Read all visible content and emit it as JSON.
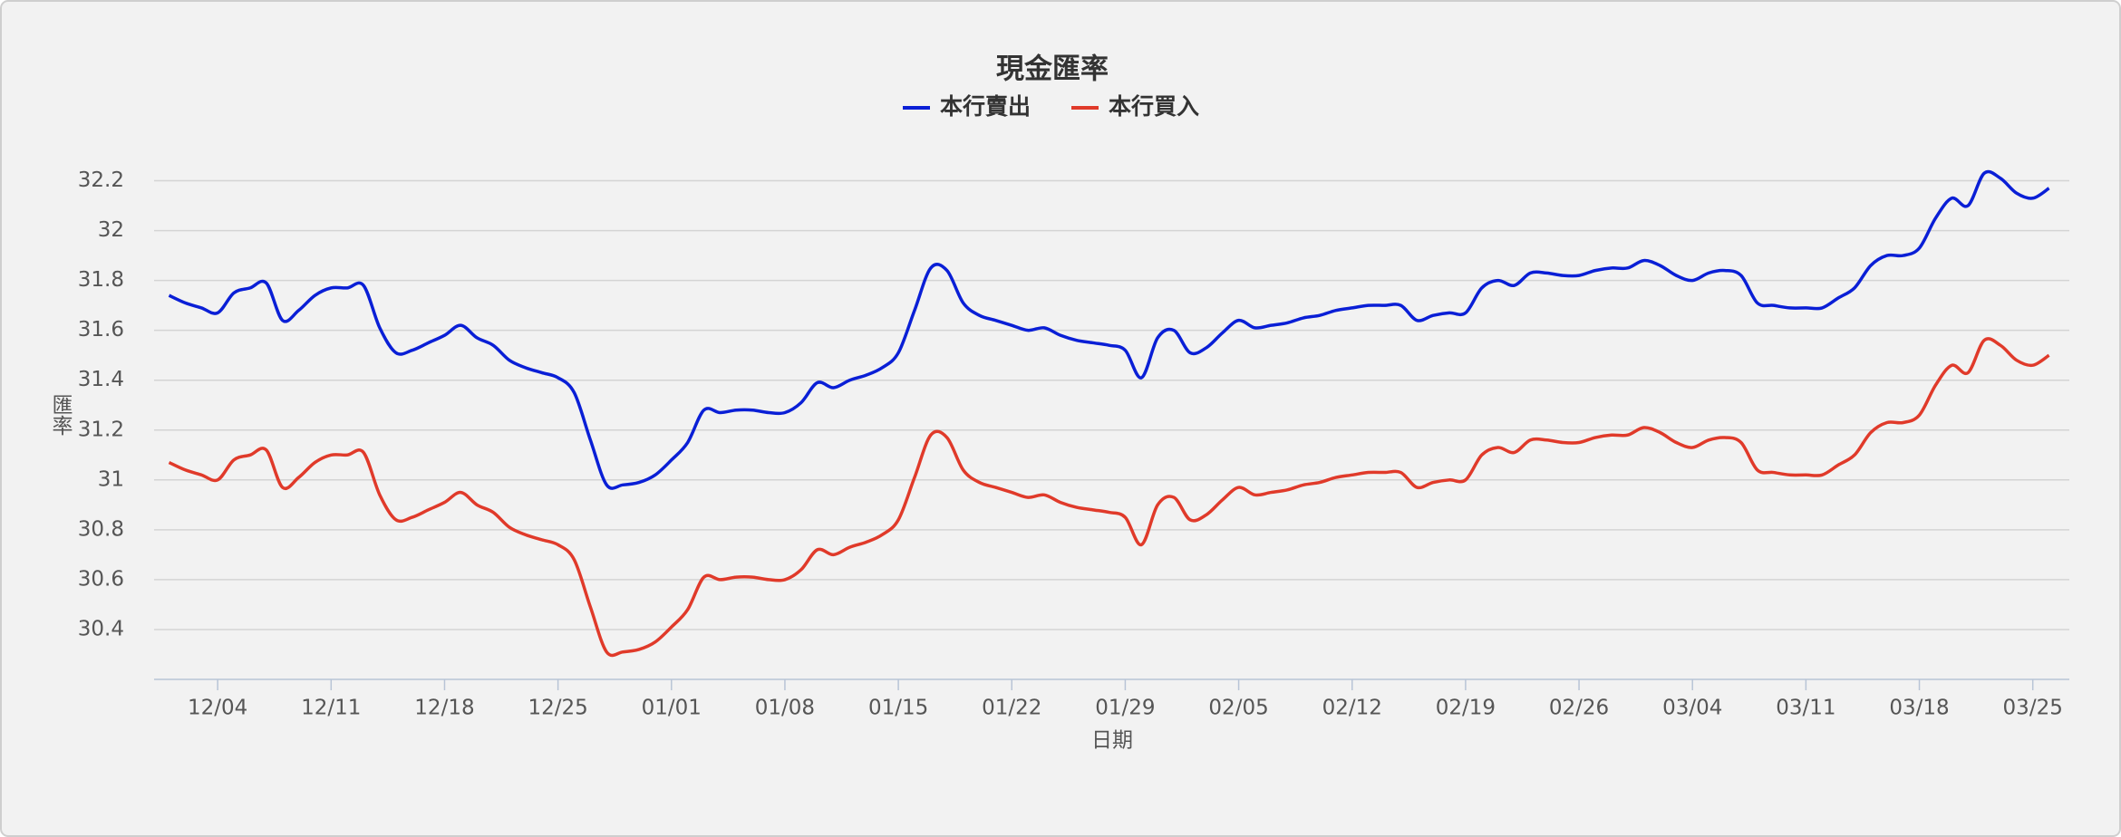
{
  "chart_data": {
    "type": "line",
    "title": "現金匯率",
    "x_label": "日期",
    "y_label": "匯率",
    "categories": [
      null,
      null,
      null,
      "12/04",
      null,
      null,
      null,
      null,
      null,
      null,
      "12/11",
      null,
      null,
      null,
      null,
      null,
      null,
      "12/18",
      null,
      null,
      null,
      null,
      null,
      null,
      "12/25",
      null,
      null,
      null,
      null,
      null,
      null,
      "01/01",
      null,
      null,
      null,
      null,
      null,
      null,
      "01/08",
      null,
      null,
      null,
      null,
      null,
      null,
      "01/15",
      null,
      null,
      null,
      null,
      null,
      null,
      "01/22",
      null,
      null,
      null,
      null,
      null,
      null,
      "01/29",
      null,
      null,
      null,
      null,
      null,
      null,
      "02/05",
      null,
      null,
      null,
      null,
      null,
      null,
      "02/12",
      null,
      null,
      null,
      null,
      null,
      null,
      "02/19",
      null,
      null,
      null,
      null,
      null,
      null,
      "02/26",
      null,
      null,
      null,
      null,
      null,
      null,
      "03/04",
      null,
      null,
      null,
      null,
      null,
      null,
      "03/11",
      null,
      null,
      null,
      null,
      null,
      null,
      "03/18",
      null,
      null,
      null,
      null,
      null,
      null,
      "03/25",
      null
    ],
    "series": [
      {
        "name": "本行賣出",
        "color": "#0a1fd6",
        "values": [
          31.74,
          31.71,
          31.69,
          31.67,
          31.75,
          31.77,
          31.79,
          31.64,
          31.68,
          31.74,
          31.77,
          31.77,
          31.78,
          31.61,
          31.51,
          31.52,
          31.55,
          31.58,
          31.62,
          31.57,
          31.54,
          31.48,
          31.45,
          31.43,
          31.41,
          31.35,
          31.16,
          30.98,
          30.98,
          30.99,
          31.02,
          31.08,
          31.15,
          31.28,
          31.27,
          31.28,
          31.28,
          31.27,
          31.27,
          31.31,
          31.39,
          31.37,
          31.4,
          31.42,
          31.45,
          31.51,
          31.68,
          31.85,
          31.84,
          31.71,
          31.66,
          31.64,
          31.62,
          31.6,
          31.61,
          31.58,
          31.56,
          31.55,
          31.54,
          31.52,
          31.41,
          31.57,
          31.6,
          31.51,
          31.53,
          31.59,
          31.64,
          31.61,
          31.62,
          31.63,
          31.65,
          31.66,
          31.68,
          31.69,
          31.7,
          31.7,
          31.7,
          31.64,
          31.66,
          31.67,
          31.67,
          31.77,
          31.8,
          31.78,
          31.83,
          31.83,
          31.82,
          31.82,
          31.84,
          31.85,
          31.85,
          31.88,
          31.86,
          31.82,
          31.8,
          31.83,
          31.84,
          31.82,
          31.71,
          31.7,
          31.69,
          31.69,
          31.69,
          31.73,
          31.77,
          31.86,
          31.9,
          31.9,
          31.93,
          32.05,
          32.13,
          32.1,
          32.23,
          32.21,
          32.15,
          32.13,
          32.17
        ]
      },
      {
        "name": "本行買入",
        "color": "#e03a2a",
        "values": [
          31.07,
          31.04,
          31.02,
          31.0,
          31.08,
          31.1,
          31.12,
          30.97,
          31.01,
          31.07,
          31.1,
          31.1,
          31.11,
          30.94,
          30.84,
          30.85,
          30.88,
          30.91,
          30.95,
          30.9,
          30.87,
          30.81,
          30.78,
          30.76,
          30.74,
          30.68,
          30.49,
          30.31,
          30.31,
          30.32,
          30.35,
          30.41,
          30.48,
          30.61,
          30.6,
          30.61,
          30.61,
          30.6,
          30.6,
          30.64,
          30.72,
          30.7,
          30.73,
          30.75,
          30.78,
          30.84,
          31.01,
          31.18,
          31.17,
          31.04,
          30.99,
          30.97,
          30.95,
          30.93,
          30.94,
          30.91,
          30.89,
          30.88,
          30.87,
          30.85,
          30.74,
          30.9,
          30.93,
          30.84,
          30.86,
          30.92,
          30.97,
          30.94,
          30.95,
          30.96,
          30.98,
          30.99,
          31.01,
          31.02,
          31.03,
          31.03,
          31.03,
          30.97,
          30.99,
          31.0,
          31.0,
          31.1,
          31.13,
          31.11,
          31.16,
          31.16,
          31.15,
          31.15,
          31.17,
          31.18,
          31.18,
          31.21,
          31.19,
          31.15,
          31.13,
          31.16,
          31.17,
          31.15,
          31.04,
          31.03,
          31.02,
          31.02,
          31.02,
          31.06,
          31.1,
          31.19,
          31.23,
          31.23,
          31.26,
          31.38,
          31.46,
          31.43,
          31.56,
          31.54,
          31.48,
          31.46,
          31.5
        ]
      }
    ],
    "ylim": [
      30.2,
      32.3
    ],
    "yticks": [
      30.4,
      30.6,
      30.8,
      31,
      31.2,
      31.4,
      31.6,
      31.8,
      32,
      32.2
    ],
    "grid": true,
    "legend": "top"
  }
}
